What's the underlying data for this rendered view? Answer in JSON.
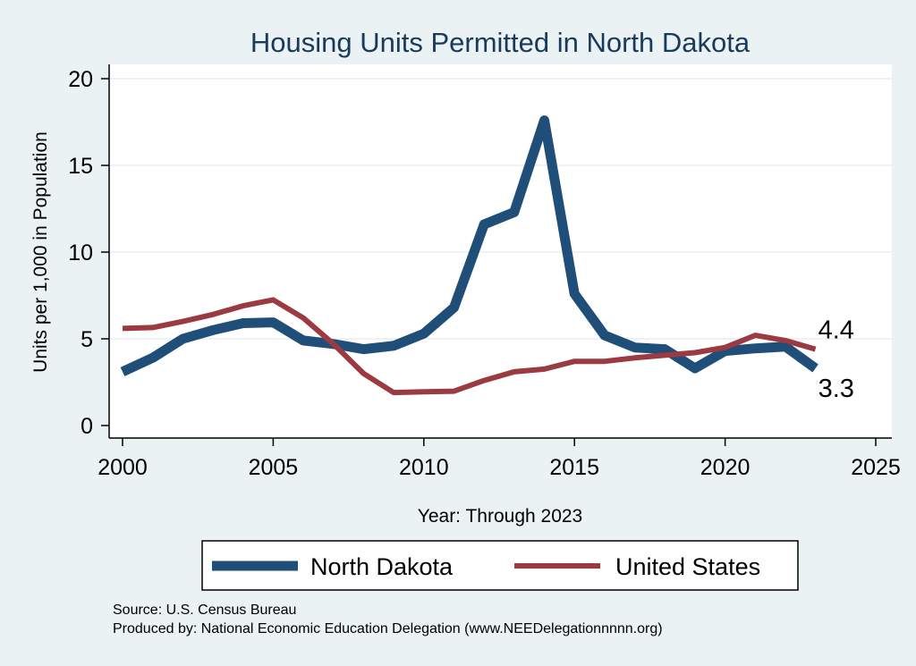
{
  "chart_data": {
    "type": "line",
    "title": "Housing Units Permitted in North Dakota",
    "xlabel": "Year: Through 2023",
    "ylabel": "Units per 1,000 in Population",
    "xlim": [
      2000,
      2025
    ],
    "ylim": [
      0,
      20
    ],
    "xticks": [
      "2000",
      "2005",
      "2010",
      "2015",
      "2020",
      "2025"
    ],
    "yticks": [
      "0",
      "5",
      "10",
      "15",
      "20"
    ],
    "grid": true,
    "legend_position": "bottom",
    "x": [
      2000,
      2001,
      2002,
      2003,
      2004,
      2005,
      2006,
      2007,
      2008,
      2009,
      2010,
      2011,
      2012,
      2013,
      2014,
      2015,
      2016,
      2017,
      2018,
      2019,
      2020,
      2021,
      2022,
      2023
    ],
    "series": [
      {
        "name": "North Dakota",
        "color": "#1f4e79",
        "values": [
          3.1,
          3.9,
          5.0,
          5.5,
          5.9,
          5.95,
          4.9,
          4.7,
          4.4,
          4.6,
          5.3,
          6.8,
          11.6,
          12.3,
          17.6,
          7.6,
          5.2,
          4.5,
          4.4,
          3.3,
          4.3,
          4.45,
          4.55,
          3.3
        ],
        "end_label": "3.3"
      },
      {
        "name": "United States",
        "color": "#9c3a41",
        "values": [
          5.6,
          5.65,
          6.0,
          6.4,
          6.9,
          7.25,
          6.2,
          4.7,
          3.0,
          1.9,
          1.95,
          1.98,
          2.6,
          3.1,
          3.25,
          3.7,
          3.7,
          3.9,
          4.05,
          4.2,
          4.5,
          5.2,
          4.9,
          4.4
        ],
        "end_label": "4.4"
      }
    ],
    "notes": [
      "Source: U.S. Census Bureau",
      "Produced by: National Economic Education Delegation (www.NEEDelegationnnnn.org)"
    ]
  }
}
